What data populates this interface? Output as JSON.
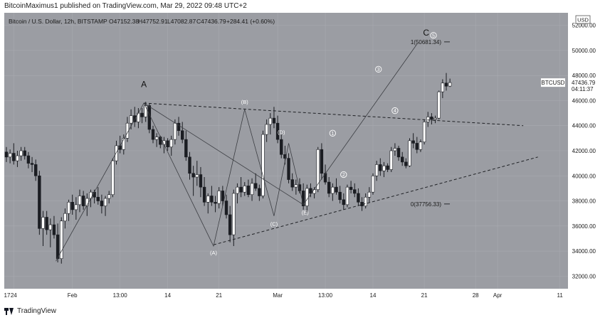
{
  "header": {
    "publisher": "BitcoinMaximus1 published on TradingView.com, Mar 29, 2022 09:48 UTC+2"
  },
  "footer": {
    "brand": "TradingView"
  },
  "chart_data": {
    "type": "candlestick",
    "symbol_line": "Bitcoin / U.S. Dollar, 12h, BITSTAMP",
    "ohlc": {
      "open": "O47152.38",
      "high": "H47752.91",
      "low": "L47082.87",
      "close": "C47436.79",
      "change": "+284.41 (+0.60%)"
    },
    "currency": "USD",
    "price_tag": {
      "label": "BTCUSD",
      "price": "47436.79",
      "countdown": "04:11:37",
      "value": 47436.79
    },
    "y_range": [
      31000,
      53000
    ],
    "y_ticks": [
      32000,
      34000,
      36000,
      38000,
      40000,
      42000,
      44000,
      46000,
      48000,
      50000,
      52000
    ],
    "y_tick_labels": [
      "32000.00",
      "34000.00",
      "36000.00",
      "38000.00",
      "40000.00",
      "42000.00",
      "44000.00",
      "46000.00",
      "48000.00",
      "50000.00",
      "52000.00"
    ],
    "x_labels": [
      {
        "label": "17",
        "bar": -12
      },
      {
        "label": "24",
        "bar": 2
      },
      {
        "label": "Feb",
        "bar": 18
      },
      {
        "label": "13:00",
        "bar": 31
      },
      {
        "label": "14",
        "bar": 44
      },
      {
        "label": "21",
        "bar": 58
      },
      {
        "label": "Mar",
        "bar": 74
      },
      {
        "label": "13:00",
        "bar": 87
      },
      {
        "label": "14",
        "bar": 100
      },
      {
        "label": "21",
        "bar": 114
      },
      {
        "label": "28",
        "bar": 128
      },
      {
        "label": "Apr",
        "bar": 134
      },
      {
        "label": "11",
        "bar": 151
      }
    ],
    "candles": [
      [
        41900,
        42300,
        41100,
        41500
      ],
      [
        41500,
        42100,
        41000,
        41800
      ],
      [
        41800,
        42600,
        40900,
        41200
      ],
      [
        41200,
        42000,
        40700,
        41600
      ],
      [
        41600,
        42300,
        41200,
        42000
      ],
      [
        42000,
        42300,
        41300,
        41600
      ],
      [
        41600,
        41900,
        40600,
        41000
      ],
      [
        41000,
        41500,
        40300,
        40900
      ],
      [
        40900,
        41300,
        39600,
        40000
      ],
      [
        40000,
        40400,
        35300,
        35800
      ],
      [
        35800,
        37200,
        34400,
        36700
      ],
      [
        36700,
        37200,
        35300,
        35700
      ],
      [
        35700,
        36600,
        34300,
        36100
      ],
      [
        36100,
        36800,
        35000,
        35300
      ],
      [
        35300,
        36200,
        33100,
        33400
      ],
      [
        33400,
        36700,
        33000,
        36400
      ],
      [
        36400,
        37400,
        35800,
        37000
      ],
      [
        37000,
        38100,
        36400,
        37900
      ],
      [
        37900,
        38500,
        36900,
        37300
      ],
      [
        37300,
        38300,
        36500,
        37700
      ],
      [
        37700,
        38900,
        37100,
        38400
      ],
      [
        38400,
        38800,
        37300,
        37600
      ],
      [
        37600,
        38600,
        36800,
        38200
      ],
      [
        38200,
        38900,
        37500,
        38700
      ],
      [
        38700,
        38900,
        37800,
        38300
      ],
      [
        38300,
        39100,
        37700,
        38000
      ],
      [
        38000,
        38500,
        37000,
        37600
      ],
      [
        37600,
        38400,
        36800,
        38200
      ],
      [
        38200,
        38800,
        37800,
        38500
      ],
      [
        38500,
        41400,
        38300,
        41200
      ],
      [
        41200,
        42800,
        40900,
        42400
      ],
      [
        42400,
        43200,
        41800,
        42100
      ],
      [
        42100,
        43300,
        41700,
        43000
      ],
      [
        43000,
        44700,
        42700,
        44200
      ],
      [
        44200,
        45300,
        43700,
        44800
      ],
      [
        44800,
        45500,
        43900,
        44300
      ],
      [
        44300,
        45400,
        43800,
        45000
      ],
      [
        45000,
        45400,
        44200,
        44700
      ],
      [
        44700,
        45900,
        44300,
        45600
      ],
      [
        45600,
        45800,
        43400,
        43700
      ],
      [
        43700,
        44000,
        42600,
        42900
      ],
      [
        42900,
        43400,
        42300,
        43100
      ],
      [
        43100,
        43200,
        42200,
        42500
      ],
      [
        42500,
        43100,
        41800,
        42800
      ],
      [
        42800,
        43000,
        42000,
        42300
      ],
      [
        42300,
        43200,
        41600,
        42900
      ],
      [
        42900,
        44500,
        42500,
        44200
      ],
      [
        44200,
        44700,
        43200,
        43600
      ],
      [
        43600,
        44300,
        42600,
        42900
      ],
      [
        42900,
        43600,
        41200,
        41500
      ],
      [
        41500,
        41900,
        39700,
        40200
      ],
      [
        40200,
        40800,
        38400,
        39900
      ],
      [
        39900,
        41200,
        39200,
        40100
      ],
      [
        40100,
        40700,
        38300,
        39100
      ],
      [
        39100,
        39900,
        37600,
        37900
      ],
      [
        37900,
        38600,
        37000,
        38400
      ],
      [
        38400,
        39200,
        37600,
        37900
      ],
      [
        37900,
        38400,
        37100,
        37800
      ],
      [
        37800,
        39100,
        37400,
        38800
      ],
      [
        38800,
        39200,
        37600,
        38000
      ],
      [
        38000,
        38500,
        36600,
        36900
      ],
      [
        36900,
        37600,
        34700,
        35300
      ],
      [
        35300,
        38900,
        34400,
        38600
      ],
      [
        38600,
        39400,
        37800,
        39100
      ],
      [
        39100,
        39900,
        38300,
        38700
      ],
      [
        38700,
        39500,
        38400,
        39200
      ],
      [
        39200,
        39700,
        38300,
        38500
      ],
      [
        38500,
        39800,
        38000,
        39400
      ],
      [
        39400,
        40200,
        38800,
        39000
      ],
      [
        39000,
        39300,
        38000,
        38400
      ],
      [
        38400,
        43600,
        38200,
        43300
      ],
      [
        43300,
        44500,
        42700,
        44100
      ],
      [
        44100,
        45000,
        43300,
        44600
      ],
      [
        44600,
        45500,
        43800,
        44200
      ],
      [
        44200,
        44800,
        42600,
        42900
      ],
      [
        42900,
        43300,
        41400,
        41700
      ],
      [
        41700,
        42400,
        40900,
        41400
      ],
      [
        41400,
        41800,
        39400,
        39700
      ],
      [
        39700,
        40200,
        38800,
        39100
      ],
      [
        39100,
        39700,
        38500,
        39300
      ],
      [
        39300,
        39800,
        38600,
        38800
      ],
      [
        38800,
        39400,
        37300,
        37600
      ],
      [
        37600,
        39300,
        37100,
        39000
      ],
      [
        39000,
        39400,
        38300,
        38600
      ],
      [
        38600,
        39100,
        38200,
        38900
      ],
      [
        38900,
        42300,
        38700,
        42100
      ],
      [
        42100,
        42600,
        39700,
        40200
      ],
      [
        40200,
        40900,
        39300,
        39500
      ],
      [
        39500,
        39900,
        38300,
        38600
      ],
      [
        38600,
        39400,
        38000,
        39100
      ],
      [
        39100,
        39800,
        38500,
        38700
      ],
      [
        38700,
        39200,
        37800,
        38100
      ],
      [
        38100,
        38600,
        37300,
        37700
      ],
      [
        37700,
        39300,
        37500,
        39100
      ],
      [
        39100,
        39600,
        38600,
        38900
      ],
      [
        38900,
        39400,
        38300,
        38600
      ],
      [
        38600,
        39000,
        37600,
        37900
      ],
      [
        37900,
        38300,
        37200,
        37600
      ],
      [
        37600,
        38600,
        37400,
        38300
      ],
      [
        38300,
        39100,
        37900,
        38700
      ],
      [
        38700,
        40200,
        38500,
        40000
      ],
      [
        40000,
        41200,
        39600,
        40900
      ],
      [
        40900,
        41400,
        40000,
        40400
      ],
      [
        40400,
        41100,
        39900,
        40800
      ],
      [
        40800,
        41000,
        40300,
        40500
      ],
      [
        40500,
        42300,
        40300,
        42000
      ],
      [
        42000,
        42600,
        41600,
        42200
      ],
      [
        42200,
        42400,
        41200,
        41500
      ],
      [
        41500,
        41900,
        40800,
        41100
      ],
      [
        41100,
        41400,
        40600,
        40800
      ],
      [
        40800,
        43000,
        40700,
        42800
      ],
      [
        42800,
        43400,
        42200,
        42600
      ],
      [
        42600,
        43100,
        41800,
        42100
      ],
      [
        42100,
        42900,
        41900,
        42700
      ],
      [
        42700,
        44500,
        42500,
        44300
      ],
      [
        44300,
        45100,
        43900,
        44700
      ],
      [
        44700,
        45000,
        44100,
        44500
      ],
      [
        44500,
        44800,
        44200,
        44600
      ],
      [
        44600,
        46800,
        44500,
        46700
      ],
      [
        46700,
        47700,
        46200,
        47400
      ],
      [
        47400,
        48200,
        46800,
        47150
      ],
      [
        47152,
        47753,
        47083,
        47437
      ]
    ],
    "trendline_upper": {
      "from": {
        "bar": 37.5,
        "price": 45800
      },
      "to": {
        "bar": 141,
        "price": 44000
      }
    },
    "trendline_lower": {
      "from": {
        "bar": 56.5,
        "price": 34500
      },
      "to": {
        "bar": 145,
        "price": 41500
      }
    },
    "wave_path": [
      {
        "bar": 13.5,
        "price": 33200
      },
      {
        "bar": 37.5,
        "price": 45800
      },
      {
        "bar": 56.5,
        "price": 34400
      },
      {
        "bar": 65,
        "price": 45300
      },
      {
        "bar": 73,
        "price": 36800
      },
      {
        "bar": 77,
        "price": 42600
      },
      {
        "bar": 81,
        "price": 37700
      },
      {
        "bar": 112,
        "price": 50500
      }
    ],
    "wave_abc_path": [
      {
        "bar": 37.5,
        "price": 45800
      },
      {
        "bar": 81,
        "price": 37700
      }
    ],
    "labels": [
      {
        "text": "A",
        "bar": 37.5,
        "price": 47300,
        "style": "letter"
      },
      {
        "text": "C",
        "bar": 114.5,
        "price": 51400,
        "style": "letter"
      },
      {
        "text": "(A)",
        "bar": 56.5,
        "price": 33900,
        "style": "paren"
      },
      {
        "text": "(B)",
        "bar": 65,
        "price": 45900,
        "style": "paren"
      },
      {
        "text": "(C)",
        "bar": 73,
        "price": 36200,
        "style": "paren"
      },
      {
        "text": "(D)",
        "bar": 75,
        "price": 43500,
        "style": "paren"
      },
      {
        "text": "(E)",
        "bar": 81.5,
        "price": 37100,
        "style": "paren"
      },
      {
        "text": "1",
        "bar": 89,
        "price": 43400,
        "style": "circle"
      },
      {
        "text": "2",
        "bar": 92,
        "price": 40100,
        "style": "circle"
      },
      {
        "text": "3",
        "bar": 101.5,
        "price": 48500,
        "style": "circle"
      },
      {
        "text": "4",
        "bar": 106,
        "price": 45200,
        "style": "circle"
      },
      {
        "text": "5",
        "bar": 116.5,
        "price": 51200,
        "style": "circle"
      }
    ],
    "fib_levels": [
      {
        "label": "1(50681.34)",
        "price": 50681.34
      },
      {
        "label": "0(37756.33)",
        "price": 37756.33
      }
    ],
    "colors": {
      "background": "#9b9da3",
      "grid": "#a8aab0",
      "candle": "#ffffff",
      "candle_dark": "#1b1d22",
      "line": "#1f2125",
      "axis_bg": "#ffffff",
      "text": "#1a1a1a"
    }
  }
}
